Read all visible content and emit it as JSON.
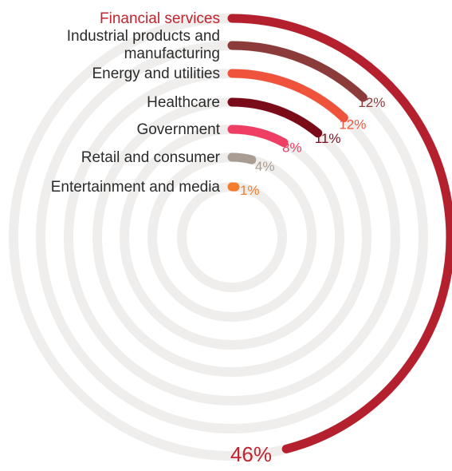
{
  "chart_data": {
    "type": "radial-bar",
    "max_percent": 100,
    "series": [
      {
        "name": "Financial services",
        "value": 46,
        "label": "46%",
        "color": "#b5202e",
        "label_color": "#c0242f",
        "name_color": "#c0242f"
      },
      {
        "name": "Industrial products and manufacturing",
        "value": 12,
        "label": "12%",
        "color": "#8c3b3b",
        "label_color": "#8c3b3b",
        "name_color": "#2b2b2b"
      },
      {
        "name": "Energy and utilities",
        "value": 12,
        "label": "12%",
        "color": "#f0533b",
        "label_color": "#f0533b",
        "name_color": "#2b2b2b"
      },
      {
        "name": "Healthcare",
        "value": 11,
        "label": "11%",
        "color": "#7a0c1a",
        "label_color": "#7a0c1a",
        "name_color": "#2b2b2b"
      },
      {
        "name": "Government",
        "value": 8,
        "label": "8%",
        "color": "#ee3e63",
        "label_color": "#ee3e63",
        "name_color": "#2b2b2b"
      },
      {
        "name": "Retail and consumer",
        "value": 4,
        "label": "4%",
        "color": "#a89c93",
        "label_color": "#a89c93",
        "name_color": "#2b2b2b"
      },
      {
        "name": "Entertainment and media",
        "value": 1,
        "label": "1%",
        "color": "#f47c2a",
        "label_color": "#f47c2a",
        "name_color": "#2b2b2b"
      }
    ],
    "track_color": "#efeeed"
  }
}
